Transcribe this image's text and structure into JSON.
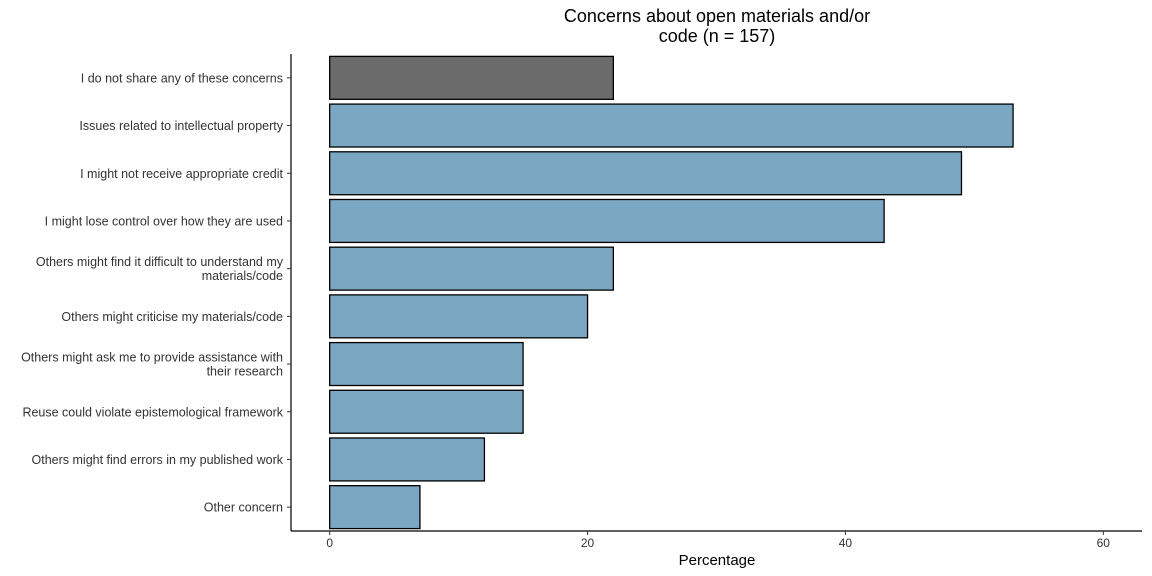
{
  "chart_data": {
    "type": "bar",
    "orientation": "horizontal",
    "title": "Concerns about open materials and/or code (n = 157)",
    "xlabel": "Percentage",
    "ylabel": "",
    "xlim": [
      -3,
      63
    ],
    "xticks": [
      0,
      20,
      40,
      60
    ],
    "grid": false,
    "legend": "none",
    "categories": [
      "I do not share any of these concerns",
      "Issues related to intellectual property",
      "I might not receive appropriate credit",
      "I might lose control over how they are used",
      "Others might find it difficult to understand my materials/code",
      "Others might criticise my materials/code",
      "Others might ask me to provide assistance with their research",
      "Reuse could violate epistemological framework",
      "Others might find errors in my published work",
      "Other concern"
    ],
    "category_lines": [
      [
        "I do not share any of these concerns"
      ],
      [
        "Issues related to intellectual property"
      ],
      [
        "I might not receive appropriate credit"
      ],
      [
        "I might lose control over how they are used"
      ],
      [
        "Others might find it difficult to understand my",
        "materials/code"
      ],
      [
        "Others might criticise my materials/code"
      ],
      [
        "Others might ask me to provide assistance with",
        "their research"
      ],
      [
        "Reuse could violate epistemological framework"
      ],
      [
        "Others might find errors in my published work"
      ],
      [
        "Other concern"
      ]
    ],
    "values": [
      22.0,
      53.0,
      49.0,
      43.0,
      22.0,
      20.0,
      15.0,
      15.0,
      12.0,
      7.0
    ],
    "colors": {
      "highlight": "#6b6b6b",
      "default": "#7ba7c3",
      "outline": "#000000"
    },
    "highlight_index": 0
  }
}
